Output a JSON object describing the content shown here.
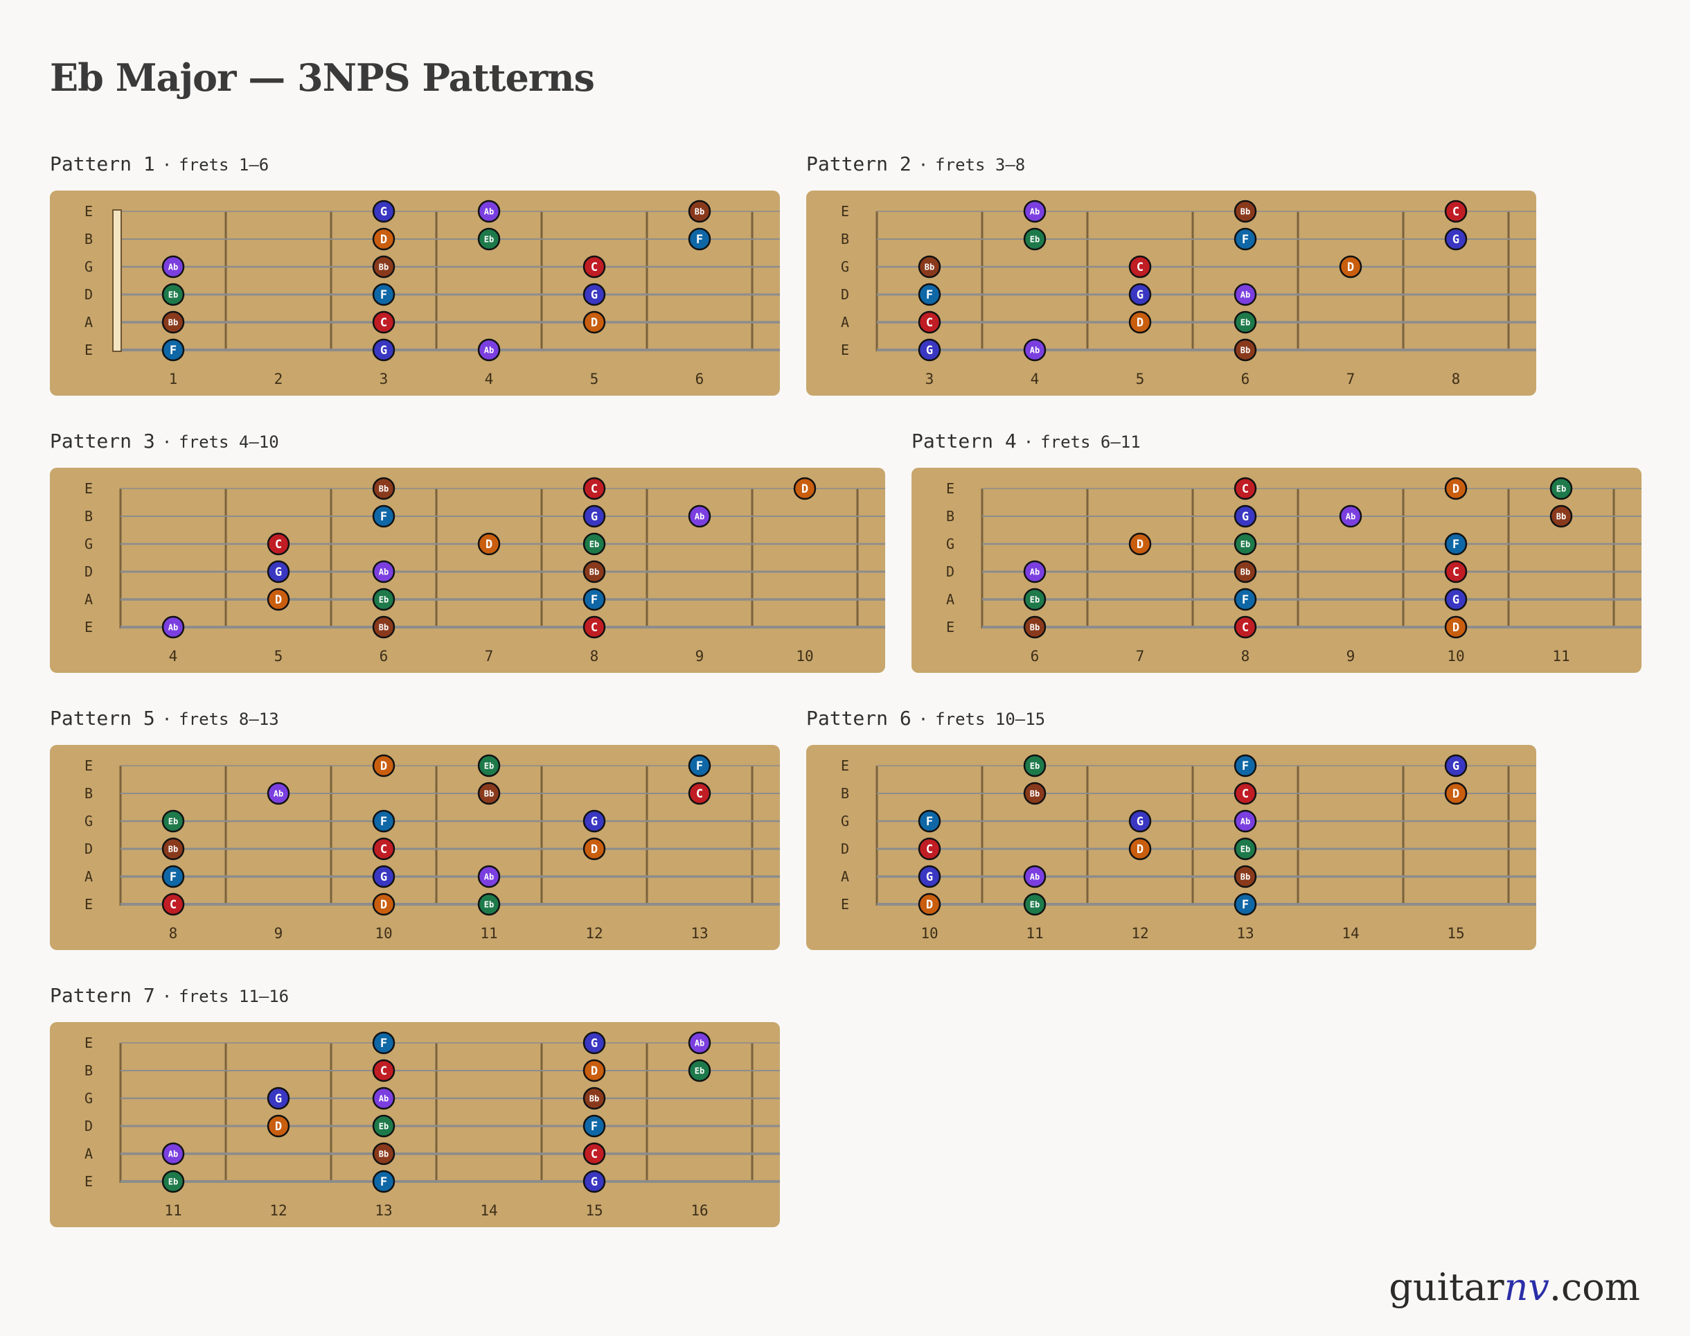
{
  "title": "Eb Major — 3NPS Patterns",
  "brand": {
    "prefix": "guitar",
    "accent": "nv",
    "suffix": ".com"
  },
  "string_labels": [
    "E",
    "B",
    "G",
    "D",
    "A",
    "E"
  ],
  "note_colors": {
    "Eb": "#1e7a4a",
    "F": "#0f67a6",
    "G": "#3a37c2",
    "Ab": "#7b3fe0",
    "Bb": "#8a3a1c",
    "C": "#c01d24",
    "D": "#c95e0f"
  },
  "colors": {
    "board": "#c8a66c",
    "fret": "#7a623c",
    "string": "#8c8c8c",
    "nut": "#f3e4c2",
    "label": "#3d2e18",
    "dot_text": "#ffffff"
  },
  "patterns": [
    {
      "name": "Pattern 1",
      "sep": "·",
      "range": "frets 1–6",
      "frets": [
        1,
        2,
        3,
        4,
        5,
        6
      ],
      "nut": true,
      "notes": [
        {
          "string": 0,
          "fret": 3,
          "label": "G"
        },
        {
          "string": 0,
          "fret": 4,
          "label": "Ab"
        },
        {
          "string": 0,
          "fret": 6,
          "label": "Bb"
        },
        {
          "string": 1,
          "fret": 3,
          "label": "D"
        },
        {
          "string": 1,
          "fret": 4,
          "label": "Eb"
        },
        {
          "string": 1,
          "fret": 6,
          "label": "F"
        },
        {
          "string": 2,
          "fret": 1,
          "label": "Ab"
        },
        {
          "string": 2,
          "fret": 3,
          "label": "Bb"
        },
        {
          "string": 2,
          "fret": 5,
          "label": "C"
        },
        {
          "string": 3,
          "fret": 1,
          "label": "Eb"
        },
        {
          "string": 3,
          "fret": 3,
          "label": "F"
        },
        {
          "string": 3,
          "fret": 5,
          "label": "G"
        },
        {
          "string": 4,
          "fret": 1,
          "label": "Bb"
        },
        {
          "string": 4,
          "fret": 3,
          "label": "C"
        },
        {
          "string": 4,
          "fret": 5,
          "label": "D"
        },
        {
          "string": 5,
          "fret": 1,
          "label": "F"
        },
        {
          "string": 5,
          "fret": 3,
          "label": "G"
        },
        {
          "string": 5,
          "fret": 4,
          "label": "Ab"
        }
      ]
    },
    {
      "name": "Pattern 2",
      "sep": "·",
      "range": "frets 3–8",
      "frets": [
        3,
        4,
        5,
        6,
        7,
        8
      ],
      "nut": false,
      "notes": [
        {
          "string": 0,
          "fret": 4,
          "label": "Ab"
        },
        {
          "string": 0,
          "fret": 6,
          "label": "Bb"
        },
        {
          "string": 0,
          "fret": 8,
          "label": "C"
        },
        {
          "string": 1,
          "fret": 4,
          "label": "Eb"
        },
        {
          "string": 1,
          "fret": 6,
          "label": "F"
        },
        {
          "string": 1,
          "fret": 8,
          "label": "G"
        },
        {
          "string": 2,
          "fret": 3,
          "label": "Bb"
        },
        {
          "string": 2,
          "fret": 5,
          "label": "C"
        },
        {
          "string": 2,
          "fret": 7,
          "label": "D"
        },
        {
          "string": 3,
          "fret": 3,
          "label": "F"
        },
        {
          "string": 3,
          "fret": 5,
          "label": "G"
        },
        {
          "string": 3,
          "fret": 6,
          "label": "Ab"
        },
        {
          "string": 4,
          "fret": 3,
          "label": "C"
        },
        {
          "string": 4,
          "fret": 5,
          "label": "D"
        },
        {
          "string": 4,
          "fret": 6,
          "label": "Eb"
        },
        {
          "string": 5,
          "fret": 3,
          "label": "G"
        },
        {
          "string": 5,
          "fret": 4,
          "label": "Ab"
        },
        {
          "string": 5,
          "fret": 6,
          "label": "Bb"
        }
      ]
    },
    {
      "name": "Pattern 3",
      "sep": "·",
      "range": "frets 4–10",
      "frets": [
        4,
        5,
        6,
        7,
        8,
        9,
        10
      ],
      "nut": false,
      "notes": [
        {
          "string": 0,
          "fret": 6,
          "label": "Bb"
        },
        {
          "string": 0,
          "fret": 8,
          "label": "C"
        },
        {
          "string": 0,
          "fret": 10,
          "label": "D"
        },
        {
          "string": 1,
          "fret": 6,
          "label": "F"
        },
        {
          "string": 1,
          "fret": 8,
          "label": "G"
        },
        {
          "string": 1,
          "fret": 9,
          "label": "Ab"
        },
        {
          "string": 2,
          "fret": 5,
          "label": "C"
        },
        {
          "string": 2,
          "fret": 7,
          "label": "D"
        },
        {
          "string": 2,
          "fret": 8,
          "label": "Eb"
        },
        {
          "string": 3,
          "fret": 5,
          "label": "G"
        },
        {
          "string": 3,
          "fret": 6,
          "label": "Ab"
        },
        {
          "string": 3,
          "fret": 8,
          "label": "Bb"
        },
        {
          "string": 4,
          "fret": 5,
          "label": "D"
        },
        {
          "string": 4,
          "fret": 6,
          "label": "Eb"
        },
        {
          "string": 4,
          "fret": 8,
          "label": "F"
        },
        {
          "string": 5,
          "fret": 4,
          "label": "Ab"
        },
        {
          "string": 5,
          "fret": 6,
          "label": "Bb"
        },
        {
          "string": 5,
          "fret": 8,
          "label": "C"
        }
      ]
    },
    {
      "name": "Pattern 4",
      "sep": "·",
      "range": "frets 6–11",
      "frets": [
        6,
        7,
        8,
        9,
        10,
        11
      ],
      "nut": false,
      "notes": [
        {
          "string": 0,
          "fret": 8,
          "label": "C"
        },
        {
          "string": 0,
          "fret": 10,
          "label": "D"
        },
        {
          "string": 0,
          "fret": 11,
          "label": "Eb"
        },
        {
          "string": 1,
          "fret": 8,
          "label": "G"
        },
        {
          "string": 1,
          "fret": 9,
          "label": "Ab"
        },
        {
          "string": 1,
          "fret": 11,
          "label": "Bb"
        },
        {
          "string": 2,
          "fret": 7,
          "label": "D"
        },
        {
          "string": 2,
          "fret": 8,
          "label": "Eb"
        },
        {
          "string": 2,
          "fret": 10,
          "label": "F"
        },
        {
          "string": 3,
          "fret": 6,
          "label": "Ab"
        },
        {
          "string": 3,
          "fret": 8,
          "label": "Bb"
        },
        {
          "string": 3,
          "fret": 10,
          "label": "C"
        },
        {
          "string": 4,
          "fret": 6,
          "label": "Eb"
        },
        {
          "string": 4,
          "fret": 8,
          "label": "F"
        },
        {
          "string": 4,
          "fret": 10,
          "label": "G"
        },
        {
          "string": 5,
          "fret": 6,
          "label": "Bb"
        },
        {
          "string": 5,
          "fret": 8,
          "label": "C"
        },
        {
          "string": 5,
          "fret": 10,
          "label": "D"
        }
      ]
    },
    {
      "name": "Pattern 5",
      "sep": "·",
      "range": "frets 8–13",
      "frets": [
        8,
        9,
        10,
        11,
        12,
        13
      ],
      "nut": false,
      "notes": [
        {
          "string": 0,
          "fret": 10,
          "label": "D"
        },
        {
          "string": 0,
          "fret": 11,
          "label": "Eb"
        },
        {
          "string": 0,
          "fret": 13,
          "label": "F"
        },
        {
          "string": 1,
          "fret": 9,
          "label": "Ab"
        },
        {
          "string": 1,
          "fret": 11,
          "label": "Bb"
        },
        {
          "string": 1,
          "fret": 13,
          "label": "C"
        },
        {
          "string": 2,
          "fret": 8,
          "label": "Eb"
        },
        {
          "string": 2,
          "fret": 10,
          "label": "F"
        },
        {
          "string": 2,
          "fret": 12,
          "label": "G"
        },
        {
          "string": 3,
          "fret": 8,
          "label": "Bb"
        },
        {
          "string": 3,
          "fret": 10,
          "label": "C"
        },
        {
          "string": 3,
          "fret": 12,
          "label": "D"
        },
        {
          "string": 4,
          "fret": 8,
          "label": "F"
        },
        {
          "string": 4,
          "fret": 10,
          "label": "G"
        },
        {
          "string": 4,
          "fret": 11,
          "label": "Ab"
        },
        {
          "string": 5,
          "fret": 8,
          "label": "C"
        },
        {
          "string": 5,
          "fret": 10,
          "label": "D"
        },
        {
          "string": 5,
          "fret": 11,
          "label": "Eb"
        }
      ]
    },
    {
      "name": "Pattern 6",
      "sep": "·",
      "range": "frets 10–15",
      "frets": [
        10,
        11,
        12,
        13,
        14,
        15
      ],
      "nut": false,
      "notes": [
        {
          "string": 0,
          "fret": 11,
          "label": "Eb"
        },
        {
          "string": 0,
          "fret": 13,
          "label": "F"
        },
        {
          "string": 0,
          "fret": 15,
          "label": "G"
        },
        {
          "string": 1,
          "fret": 11,
          "label": "Bb"
        },
        {
          "string": 1,
          "fret": 13,
          "label": "C"
        },
        {
          "string": 1,
          "fret": 15,
          "label": "D"
        },
        {
          "string": 2,
          "fret": 10,
          "label": "F"
        },
        {
          "string": 2,
          "fret": 12,
          "label": "G"
        },
        {
          "string": 2,
          "fret": 13,
          "label": "Ab"
        },
        {
          "string": 3,
          "fret": 10,
          "label": "C"
        },
        {
          "string": 3,
          "fret": 12,
          "label": "D"
        },
        {
          "string": 3,
          "fret": 13,
          "label": "Eb"
        },
        {
          "string": 4,
          "fret": 10,
          "label": "G"
        },
        {
          "string": 4,
          "fret": 11,
          "label": "Ab"
        },
        {
          "string": 4,
          "fret": 13,
          "label": "Bb"
        },
        {
          "string": 5,
          "fret": 10,
          "label": "D"
        },
        {
          "string": 5,
          "fret": 11,
          "label": "Eb"
        },
        {
          "string": 5,
          "fret": 13,
          "label": "F"
        }
      ]
    },
    {
      "name": "Pattern 7",
      "sep": "·",
      "range": "frets 11–16",
      "frets": [
        11,
        12,
        13,
        14,
        15,
        16
      ],
      "nut": false,
      "notes": [
        {
          "string": 0,
          "fret": 13,
          "label": "F"
        },
        {
          "string": 0,
          "fret": 15,
          "label": "G"
        },
        {
          "string": 0,
          "fret": 16,
          "label": "Ab"
        },
        {
          "string": 1,
          "fret": 13,
          "label": "C"
        },
        {
          "string": 1,
          "fret": 15,
          "label": "D"
        },
        {
          "string": 1,
          "fret": 16,
          "label": "Eb"
        },
        {
          "string": 2,
          "fret": 12,
          "label": "G"
        },
        {
          "string": 2,
          "fret": 13,
          "label": "Ab"
        },
        {
          "string": 2,
          "fret": 15,
          "label": "Bb"
        },
        {
          "string": 3,
          "fret": 12,
          "label": "D"
        },
        {
          "string": 3,
          "fret": 13,
          "label": "Eb"
        },
        {
          "string": 3,
          "fret": 15,
          "label": "F"
        },
        {
          "string": 4,
          "fret": 11,
          "label": "Ab"
        },
        {
          "string": 4,
          "fret": 13,
          "label": "Bb"
        },
        {
          "string": 4,
          "fret": 15,
          "label": "C"
        },
        {
          "string": 5,
          "fret": 11,
          "label": "Eb"
        },
        {
          "string": 5,
          "fret": 13,
          "label": "F"
        },
        {
          "string": 5,
          "fret": 15,
          "label": "G"
        }
      ]
    }
  ]
}
